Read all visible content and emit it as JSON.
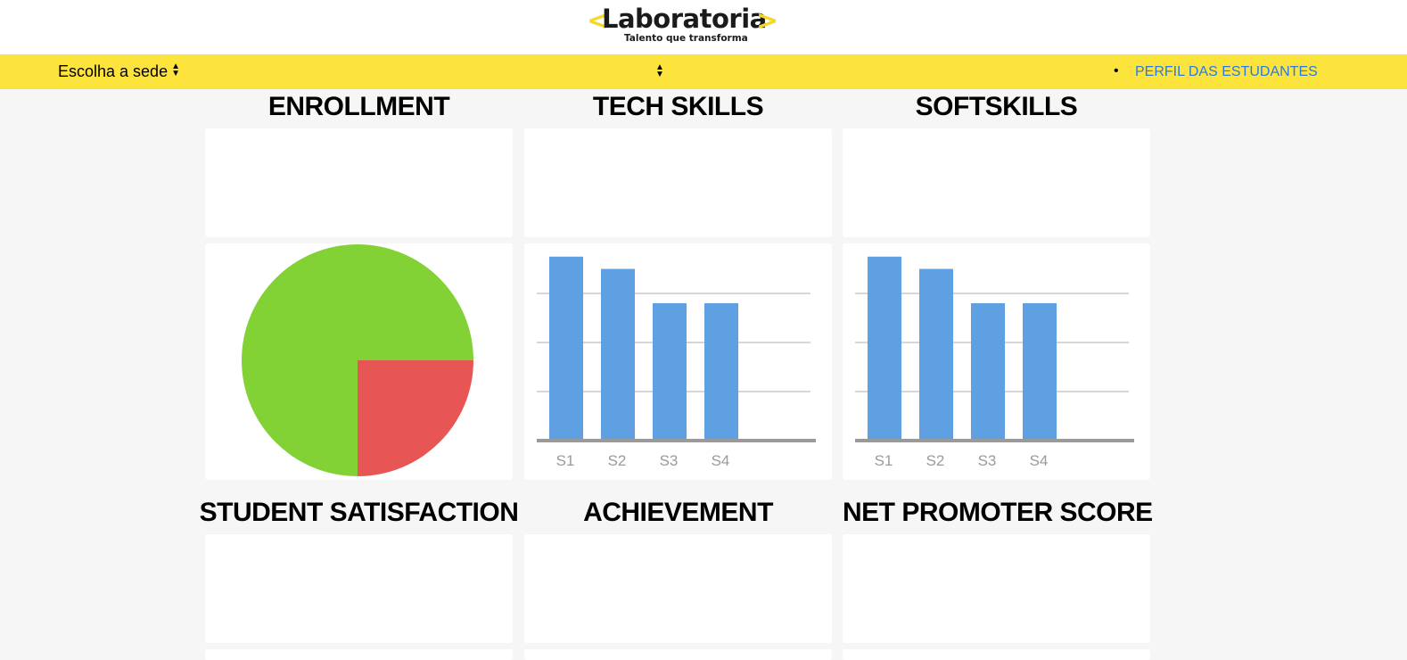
{
  "header": {
    "logo_name": "Laboratoria",
    "logo_bracket_left": "<",
    "logo_bracket_right": ">",
    "tagline": "Talento que transforma",
    "brand_color": "#f3d92b"
  },
  "navbar": {
    "select_sede_label": "Escolha a sede",
    "nav_link": "PERFIL DAS ESTUDANTES",
    "background": "#fde43d",
    "link_color": "#2a7ae2"
  },
  "sections": {
    "row1": [
      "ENROLLMENT",
      "TECH SKILLS",
      "SOFTSKILLS"
    ],
    "row2": [
      "STUDENT SATISFACTION",
      "ACHIEVEMENT",
      "NET PROMOTER SCORE"
    ]
  },
  "chart_data": [
    {
      "type": "pie",
      "values": [
        75,
        25
      ],
      "colors": [
        "#82d135",
        "#e85555"
      ]
    },
    {
      "type": "bar",
      "categories": [
        "S1",
        "S2",
        "S3",
        "S4"
      ],
      "values": [
        3.75,
        3.5,
        2.8,
        2.8
      ],
      "ylim": [
        0,
        3.8
      ],
      "grid": true,
      "bar_color": "#5ea0e2"
    },
    {
      "type": "bar",
      "categories": [
        "S1",
        "S2",
        "S3",
        "S4"
      ],
      "values": [
        3.75,
        3.5,
        2.8,
        2.8
      ],
      "ylim": [
        0,
        3.8
      ],
      "grid": true,
      "bar_color": "#5ea0e2"
    }
  ]
}
